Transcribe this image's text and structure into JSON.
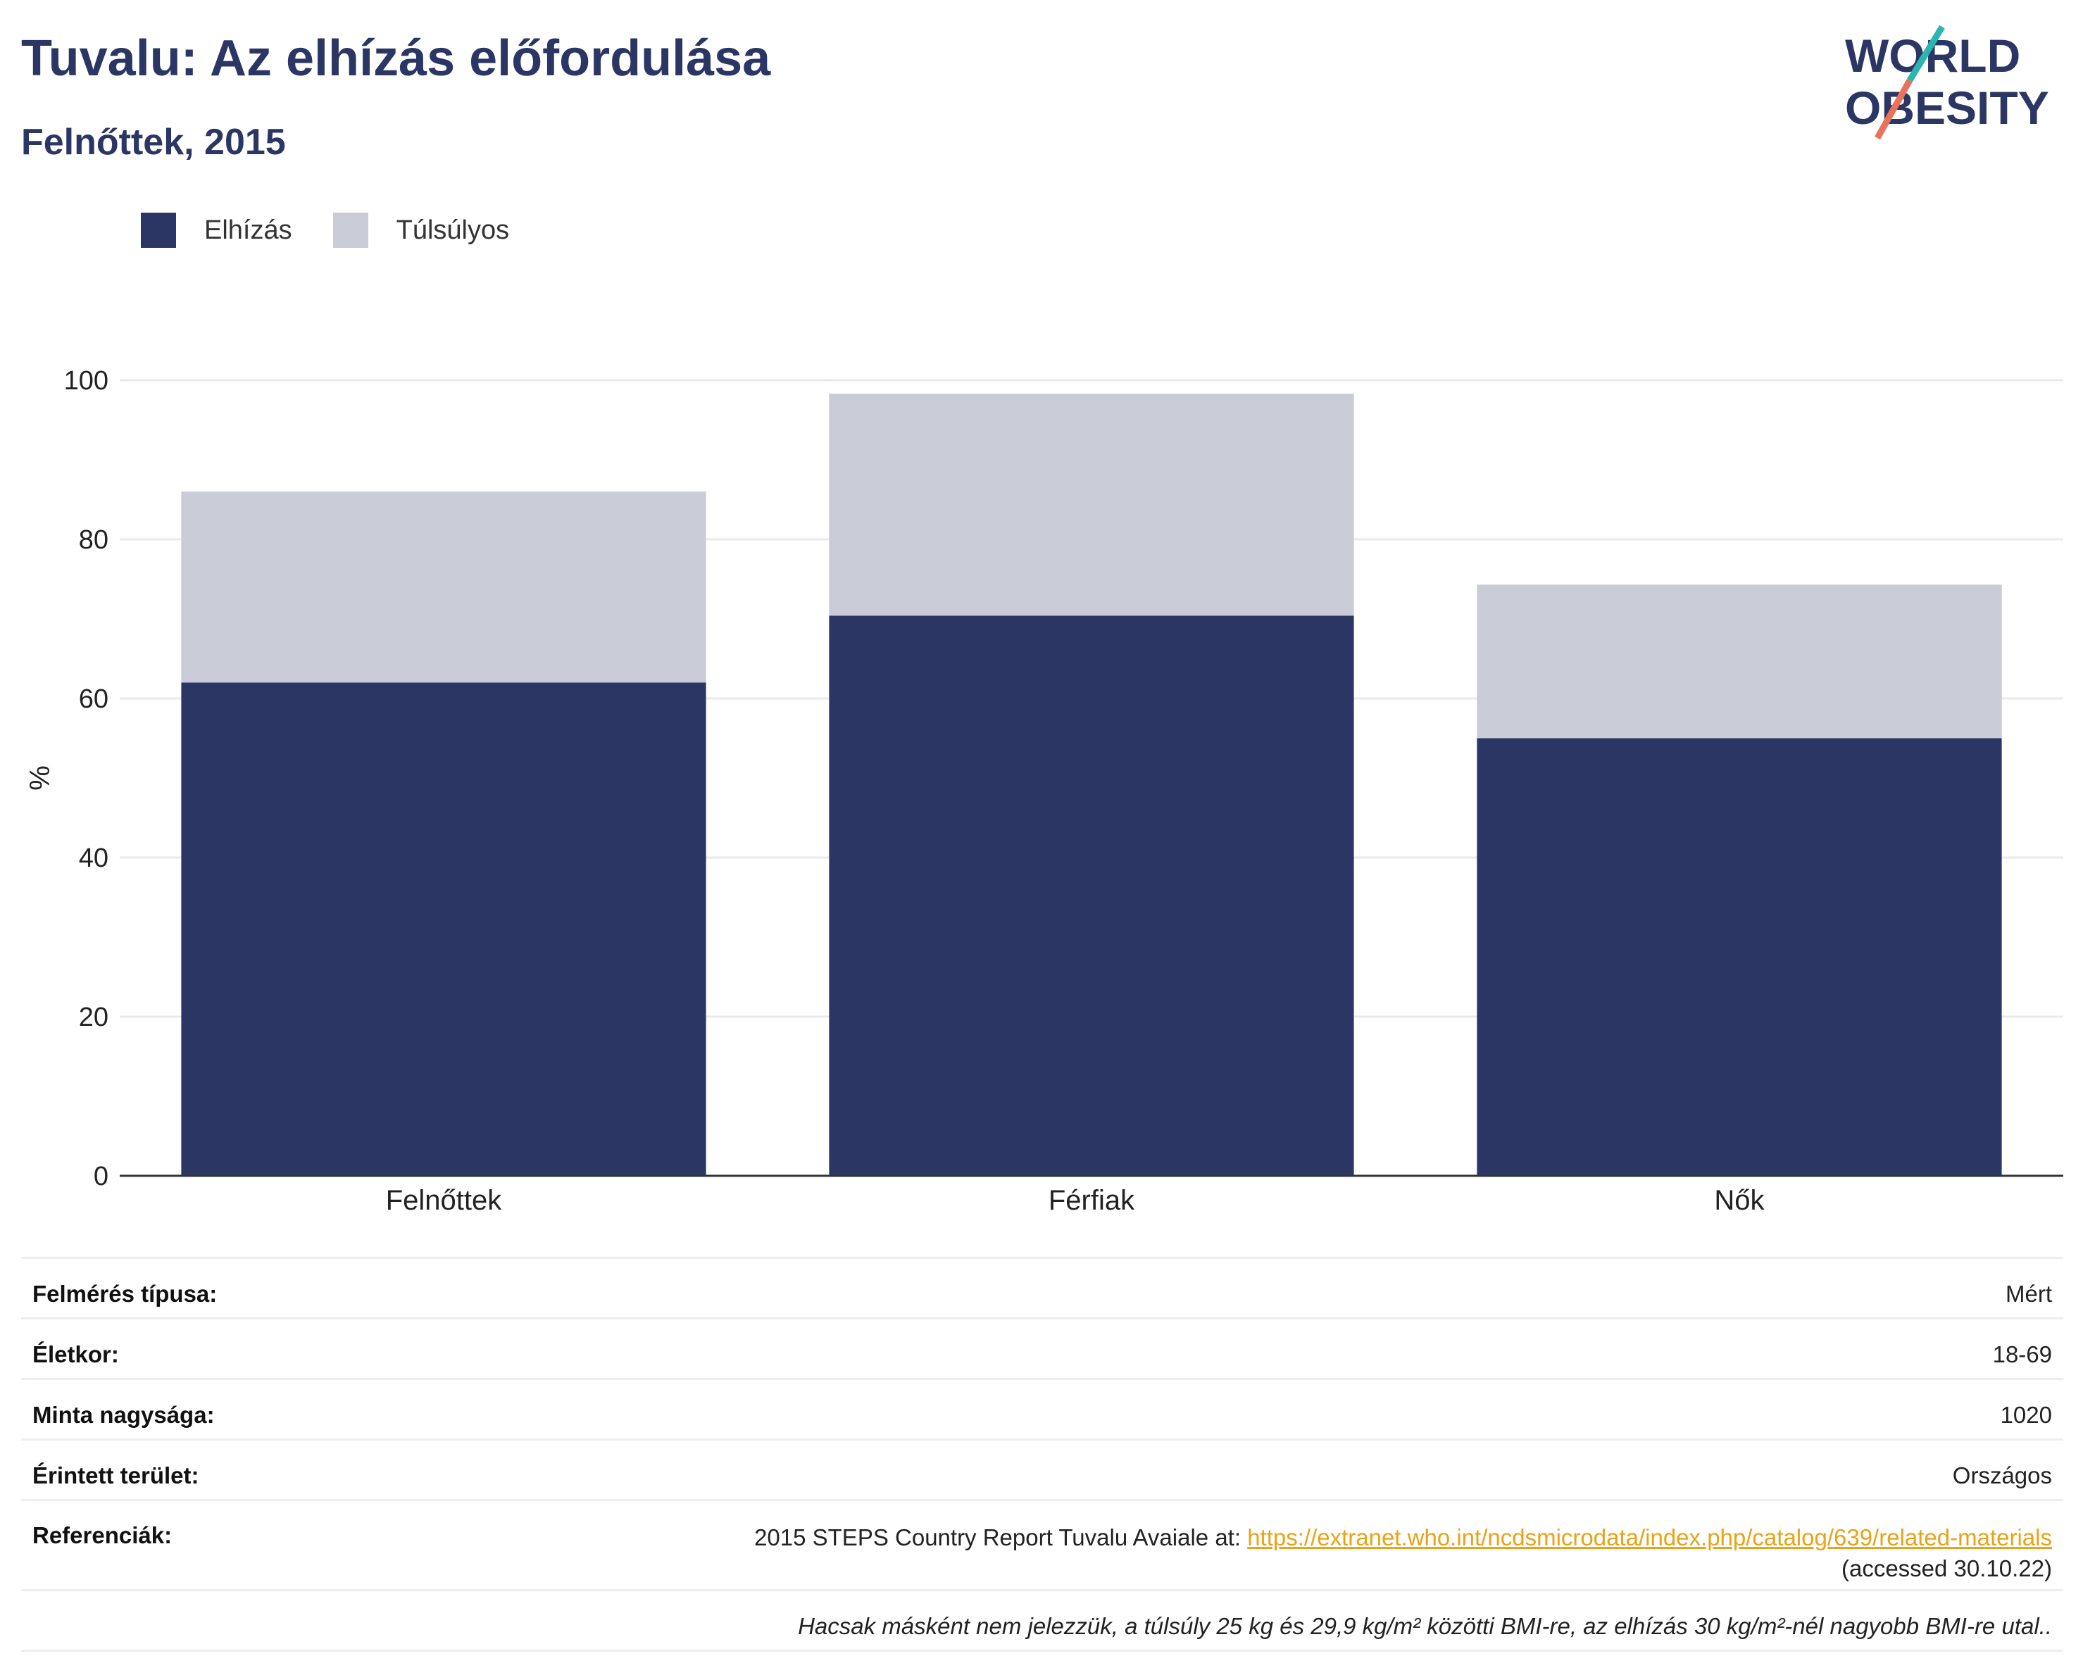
{
  "header": {
    "title": "Tuvalu: Az elhízás előfordulása",
    "subtitle": "Felnőttek, 2015",
    "logo_line1": "WORLD",
    "logo_line2": "OBESITY"
  },
  "legend": [
    {
      "label": "Elhízás",
      "color": "#2b3664"
    },
    {
      "label": "Túlsúlyos",
      "color": "#c9cbd6"
    }
  ],
  "chart_data": {
    "type": "bar",
    "stacked": true,
    "categories": [
      "Felnőttek",
      "Férfiak",
      "Nők"
    ],
    "series": [
      {
        "name": "Elhízás",
        "values": [
          62.0,
          70.4,
          55.0
        ],
        "color": "#2b3664"
      },
      {
        "name": "Túlsúlyos",
        "values": [
          24.0,
          27.9,
          19.3
        ],
        "color": "#c9cbd6"
      }
    ],
    "ylabel": "%",
    "ylim": [
      0,
      100
    ],
    "yticks": [
      0,
      20,
      40,
      60,
      80,
      100
    ],
    "grid": true
  },
  "meta": {
    "survey_type_label": "Felmérés típusa:",
    "survey_type_value": "Mért",
    "age_label": "Életkor:",
    "age_value": "18-69",
    "sample_label": "Minta nagysága:",
    "sample_value": "1020",
    "area_label": "Érintett terület:",
    "area_value": "Országos",
    "ref_label": "Referenciák:",
    "ref_text": "2015 STEPS Country Report Tuvalu Avaiale at: ",
    "ref_link": "https://extranet.who.int/ncdsmicrodata/index.php/catalog/639/related-materials",
    "ref_accessed": "(accessed 30.10.22)",
    "note": "Hacsak másként nem jelezzük, a túlsúly 25 kg és 29,9 kg/m² közötti BMI-re, az elhízás 30 kg/m²-nél nagyobb BMI-re utal.."
  }
}
